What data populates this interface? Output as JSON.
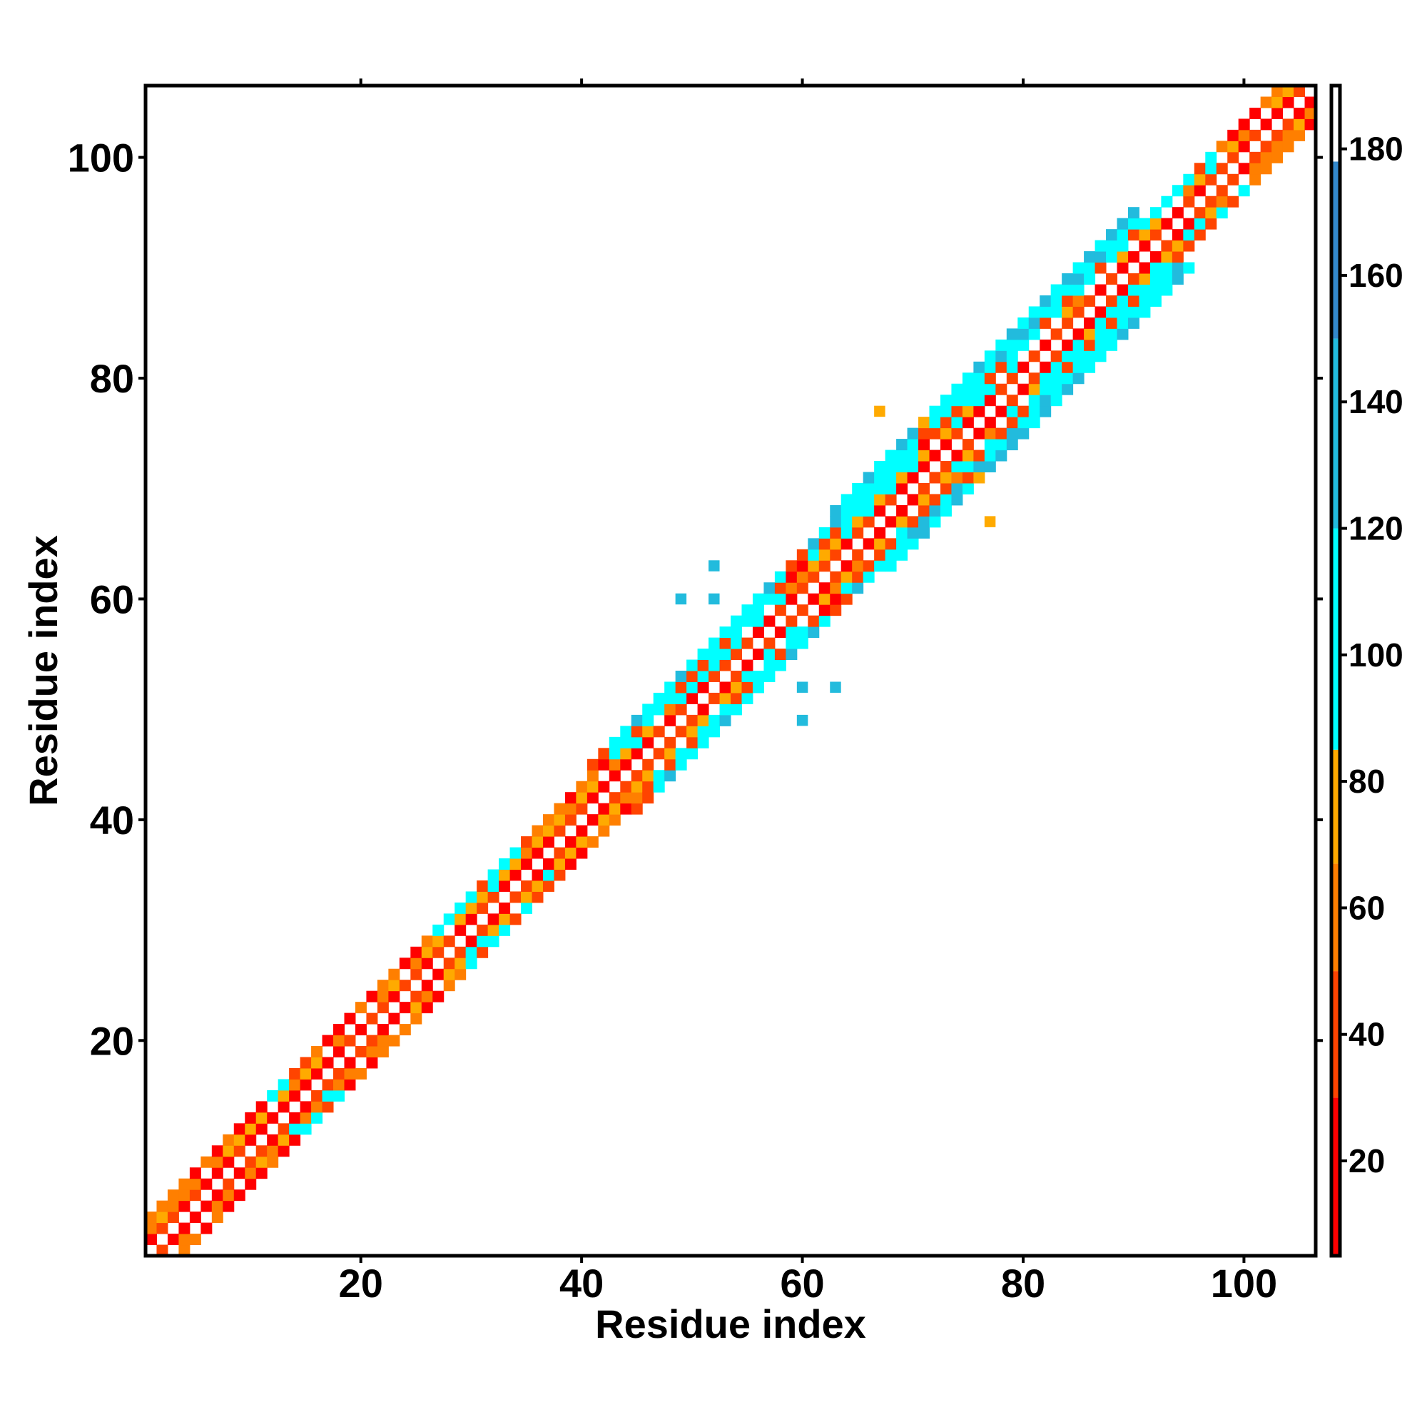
{
  "chart_data": {
    "type": "heatmap",
    "title": "",
    "xlabel": "Residue index",
    "ylabel": "Residue index",
    "xlim": [
      1,
      106
    ],
    "ylim": [
      1,
      106
    ],
    "x_ticks": [
      20,
      40,
      60,
      80,
      100
    ],
    "y_ticks": [
      20,
      40,
      60,
      80,
      100
    ],
    "colorbar": {
      "range": [
        5,
        190
      ],
      "ticks": [
        20,
        40,
        60,
        80,
        100,
        120,
        140,
        160,
        180
      ],
      "bands": [
        {
          "from": 5,
          "to": 30,
          "color": "#ff0000"
        },
        {
          "from": 30,
          "to": 50,
          "color": "#ff4400"
        },
        {
          "from": 50,
          "to": 67,
          "color": "#ff7f00"
        },
        {
          "from": 67,
          "to": 85,
          "color": "#ffaa00"
        },
        {
          "from": 85,
          "to": 120,
          "color": "#00ffff"
        },
        {
          "from": 120,
          "to": 150,
          "color": "#22bbdd"
        },
        {
          "from": 150,
          "to": 178,
          "color": "#3388cc"
        },
        {
          "from": 178,
          "to": 190,
          "color": "#ffffff"
        }
      ]
    },
    "symmetric": true,
    "band_segments": [
      {
        "from": 1,
        "to": 40,
        "width": 3
      },
      {
        "from": 40,
        "to": 62,
        "width": 4
      },
      {
        "from": 62,
        "to": 90,
        "width": 5
      },
      {
        "from": 90,
        "to": 106,
        "width": 3
      }
    ],
    "offdiag_cells": [
      {
        "x": 77,
        "y": 67,
        "value": 75
      },
      {
        "x": 52,
        "y": 63,
        "value": 130
      },
      {
        "x": 49,
        "y": 60,
        "value": 130
      },
      {
        "x": 52,
        "y": 60,
        "value": 140
      },
      {
        "x": 63,
        "y": 52,
        "value": 130
      },
      {
        "x": 60,
        "y": 52,
        "value": 140
      },
      {
        "x": 60,
        "y": 49,
        "value": 130
      },
      {
        "x": 67,
        "y": 77,
        "value": 75
      }
    ]
  }
}
